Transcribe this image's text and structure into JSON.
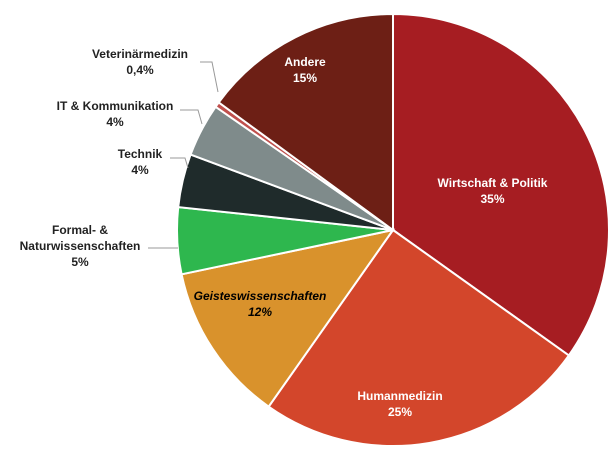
{
  "chart_data": {
    "type": "pie",
    "categories": [
      "Wirtschaft & Politik",
      "Humanmedizin",
      "Geisteswissenschaften",
      "Formal- & Naturwissenschaften",
      "Technik",
      "IT & Kommunikation",
      "Veterinärmedizin",
      "Andere"
    ],
    "values": [
      35,
      25,
      12,
      5,
      4,
      4,
      0.4,
      15
    ],
    "value_labels": [
      "35%",
      "25%",
      "12%",
      "5%",
      "4%",
      "4%",
      "0,4%",
      "15%"
    ],
    "colors": [
      "#a61d22",
      "#d3462b",
      "#d9922c",
      "#2eb74e",
      "#1f2b2b",
      "#7f8b8b",
      "#c0504d",
      "#6d1f15"
    ]
  }
}
